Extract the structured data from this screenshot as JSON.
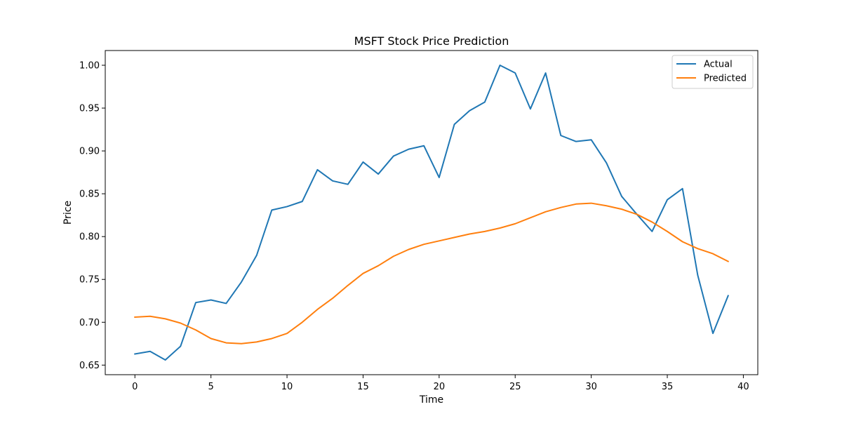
{
  "chart_data": {
    "type": "line",
    "title": "MSFT Stock Price Prediction",
    "xlabel": "Time",
    "ylabel": "Price",
    "xlim": [
      -1.95,
      40.95
    ],
    "ylim": [
      0.6388,
      1.0172
    ],
    "xticks": [
      0,
      5,
      10,
      15,
      20,
      25,
      30,
      35,
      40
    ],
    "xtick_labels": [
      "0",
      "5",
      "10",
      "15",
      "20",
      "25",
      "30",
      "35",
      "40"
    ],
    "yticks": [
      0.65,
      0.7,
      0.75,
      0.8,
      0.85,
      0.9,
      0.95,
      1.0
    ],
    "ytick_labels": [
      "0.65",
      "0.70",
      "0.75",
      "0.80",
      "0.85",
      "0.90",
      "0.95",
      "1.00"
    ],
    "grid": false,
    "legend_position": "top-right",
    "x": [
      0,
      1,
      2,
      3,
      4,
      5,
      6,
      7,
      8,
      9,
      10,
      11,
      12,
      13,
      14,
      15,
      16,
      17,
      18,
      19,
      20,
      21,
      22,
      23,
      24,
      25,
      26,
      27,
      28,
      29,
      30,
      31,
      32,
      33,
      34,
      35,
      36,
      37,
      38,
      39
    ],
    "series": [
      {
        "name": "Actual",
        "color": "#1f77b4",
        "values": [
          0.663,
          0.666,
          0.656,
          0.672,
          0.723,
          0.726,
          0.722,
          0.747,
          0.778,
          0.831,
          0.835,
          0.841,
          0.878,
          0.865,
          0.861,
          0.887,
          0.873,
          0.894,
          0.902,
          0.906,
          0.869,
          0.931,
          0.947,
          0.957,
          1.0,
          0.991,
          0.949,
          0.991,
          0.918,
          0.911,
          0.913,
          0.886,
          0.847,
          0.826,
          0.806,
          0.843,
          0.856,
          0.755,
          0.687,
          0.731
        ]
      },
      {
        "name": "Predicted",
        "color": "#ff7f0e",
        "values": [
          0.706,
          0.707,
          0.704,
          0.699,
          0.691,
          0.681,
          0.676,
          0.675,
          0.677,
          0.681,
          0.687,
          0.7,
          0.715,
          0.728,
          0.743,
          0.757,
          0.766,
          0.777,
          0.785,
          0.791,
          0.795,
          0.799,
          0.803,
          0.806,
          0.81,
          0.815,
          0.822,
          0.829,
          0.834,
          0.838,
          0.839,
          0.836,
          0.832,
          0.826,
          0.817,
          0.806,
          0.794,
          0.786,
          0.78,
          0.771
        ]
      }
    ]
  }
}
